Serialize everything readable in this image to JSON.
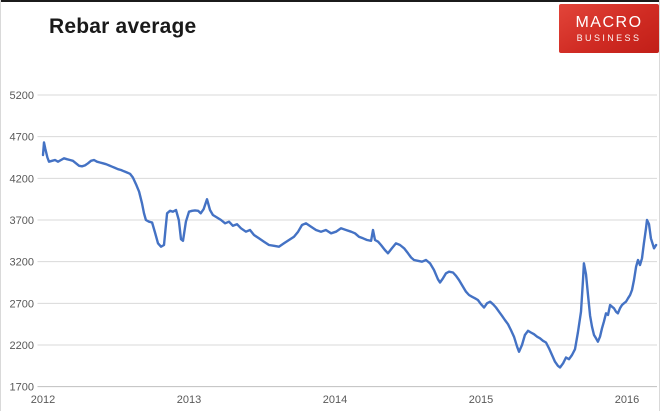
{
  "page": {
    "logo": {
      "line1": "MACRO",
      "line2": "BUSINESS",
      "bg_color": "#d02b23",
      "text_color": "#ffffff"
    }
  },
  "chart_data": {
    "type": "line",
    "title": "Rebar average",
    "xlabel": "",
    "ylabel": "",
    "x_ticks": [
      2012,
      2013,
      2014,
      2015,
      2016
    ],
    "y_ticks": [
      1700,
      2200,
      2700,
      3200,
      3700,
      4200,
      4700,
      5200
    ],
    "xlim": [
      2012,
      2016.25
    ],
    "ylim": [
      1700,
      5350
    ],
    "grid": "horizontal",
    "legend_position": "none",
    "line_color": "#4472C4",
    "gridline_color": "#D9D9D9",
    "axis_line_color": "#BFBFBF",
    "tick_label_color": "#595959",
    "series": [
      {
        "name": "Rebar average",
        "color": "#4472C4",
        "points": [
          [
            2012.0,
            4480
          ],
          [
            2012.007,
            4630
          ],
          [
            2012.015,
            4560
          ],
          [
            2012.03,
            4450
          ],
          [
            2012.041,
            4400
          ],
          [
            2012.062,
            4410
          ],
          [
            2012.082,
            4420
          ],
          [
            2012.103,
            4400
          ],
          [
            2012.123,
            4420
          ],
          [
            2012.144,
            4440
          ],
          [
            2012.164,
            4430
          ],
          [
            2012.185,
            4420
          ],
          [
            2012.205,
            4410
          ],
          [
            2012.226,
            4380
          ],
          [
            2012.247,
            4350
          ],
          [
            2012.267,
            4345
          ],
          [
            2012.288,
            4355
          ],
          [
            2012.308,
            4380
          ],
          [
            2012.329,
            4410
          ],
          [
            2012.349,
            4420
          ],
          [
            2012.37,
            4400
          ],
          [
            2012.39,
            4390
          ],
          [
            2012.411,
            4380
          ],
          [
            2012.432,
            4370
          ],
          [
            2012.452,
            4355
          ],
          [
            2012.473,
            4340
          ],
          [
            2012.493,
            4325
          ],
          [
            2012.514,
            4310
          ],
          [
            2012.534,
            4300
          ],
          [
            2012.555,
            4285
          ],
          [
            2012.575,
            4270
          ],
          [
            2012.596,
            4255
          ],
          [
            2012.616,
            4210
          ],
          [
            2012.637,
            4130
          ],
          [
            2012.658,
            4040
          ],
          [
            2012.678,
            3900
          ],
          [
            2012.692,
            3780
          ],
          [
            2012.705,
            3700
          ],
          [
            2012.726,
            3680
          ],
          [
            2012.747,
            3670
          ],
          [
            2012.767,
            3550
          ],
          [
            2012.788,
            3420
          ],
          [
            2012.808,
            3380
          ],
          [
            2012.829,
            3400
          ],
          [
            2012.84,
            3600
          ],
          [
            2012.85,
            3780
          ],
          [
            2012.87,
            3810
          ],
          [
            2012.89,
            3800
          ],
          [
            2012.911,
            3820
          ],
          [
            2012.93,
            3700
          ],
          [
            2012.945,
            3470
          ],
          [
            2012.959,
            3450
          ],
          [
            2012.979,
            3680
          ],
          [
            2013.0,
            3800
          ],
          [
            2013.021,
            3810
          ],
          [
            2013.041,
            3815
          ],
          [
            2013.062,
            3810
          ],
          [
            2013.08,
            3780
          ],
          [
            2013.1,
            3830
          ],
          [
            2013.123,
            3950
          ],
          [
            2013.144,
            3820
          ],
          [
            2013.164,
            3760
          ],
          [
            2013.192,
            3730
          ],
          [
            2013.219,
            3700
          ],
          [
            2013.247,
            3660
          ],
          [
            2013.274,
            3680
          ],
          [
            2013.301,
            3630
          ],
          [
            2013.329,
            3650
          ],
          [
            2013.356,
            3600
          ],
          [
            2013.39,
            3560
          ],
          [
            2013.418,
            3580
          ],
          [
            2013.445,
            3520
          ],
          [
            2013.479,
            3480
          ],
          [
            2013.514,
            3440
          ],
          [
            2013.548,
            3400
          ],
          [
            2013.582,
            3390
          ],
          [
            2013.616,
            3380
          ],
          [
            2013.651,
            3420
          ],
          [
            2013.685,
            3460
          ],
          [
            2013.719,
            3500
          ],
          [
            2013.747,
            3560
          ],
          [
            2013.774,
            3640
          ],
          [
            2013.801,
            3660
          ],
          [
            2013.836,
            3620
          ],
          [
            2013.87,
            3580
          ],
          [
            2013.904,
            3560
          ],
          [
            2013.938,
            3580
          ],
          [
            2013.973,
            3540
          ],
          [
            2014.007,
            3560
          ],
          [
            2014.041,
            3600
          ],
          [
            2014.075,
            3580
          ],
          [
            2014.11,
            3560
          ],
          [
            2014.137,
            3540
          ],
          [
            2014.164,
            3500
          ],
          [
            2014.192,
            3480
          ],
          [
            2014.219,
            3460
          ],
          [
            2014.247,
            3450
          ],
          [
            2014.26,
            3580
          ],
          [
            2014.274,
            3460
          ],
          [
            2014.295,
            3440
          ],
          [
            2014.315,
            3400
          ],
          [
            2014.342,
            3340
          ],
          [
            2014.363,
            3300
          ],
          [
            2014.39,
            3360
          ],
          [
            2014.418,
            3420
          ],
          [
            2014.445,
            3400
          ],
          [
            2014.473,
            3360
          ],
          [
            2014.5,
            3300
          ],
          [
            2014.521,
            3250
          ],
          [
            2014.541,
            3220
          ],
          [
            2014.568,
            3210
          ],
          [
            2014.596,
            3200
          ],
          [
            2014.623,
            3220
          ],
          [
            2014.651,
            3180
          ],
          [
            2014.678,
            3100
          ],
          [
            2014.705,
            2990
          ],
          [
            2014.719,
            2950
          ],
          [
            2014.74,
            3000
          ],
          [
            2014.76,
            3060
          ],
          [
            2014.781,
            3080
          ],
          [
            2014.808,
            3070
          ],
          [
            2014.829,
            3030
          ],
          [
            2014.849,
            2980
          ],
          [
            2014.877,
            2900
          ],
          [
            2014.897,
            2840
          ],
          [
            2014.918,
            2800
          ],
          [
            2014.938,
            2780
          ],
          [
            2014.959,
            2760
          ],
          [
            2014.979,
            2740
          ],
          [
            2015.0,
            2690
          ],
          [
            2015.021,
            2650
          ],
          [
            2015.041,
            2700
          ],
          [
            2015.062,
            2720
          ],
          [
            2015.082,
            2690
          ],
          [
            2015.103,
            2650
          ],
          [
            2015.123,
            2600
          ],
          [
            2015.144,
            2550
          ],
          [
            2015.164,
            2500
          ],
          [
            2015.185,
            2450
          ],
          [
            2015.205,
            2380
          ],
          [
            2015.226,
            2300
          ],
          [
            2015.247,
            2180
          ],
          [
            2015.26,
            2120
          ],
          [
            2015.281,
            2200
          ],
          [
            2015.301,
            2320
          ],
          [
            2015.322,
            2370
          ],
          [
            2015.342,
            2350
          ],
          [
            2015.363,
            2330
          ],
          [
            2015.384,
            2300
          ],
          [
            2015.404,
            2280
          ],
          [
            2015.425,
            2250
          ],
          [
            2015.445,
            2230
          ],
          [
            2015.466,
            2160
          ],
          [
            2015.486,
            2080
          ],
          [
            2015.507,
            2000
          ],
          [
            2015.527,
            1950
          ],
          [
            2015.541,
            1930
          ],
          [
            2015.562,
            1980
          ],
          [
            2015.582,
            2050
          ],
          [
            2015.603,
            2030
          ],
          [
            2015.623,
            2080
          ],
          [
            2015.644,
            2150
          ],
          [
            2015.664,
            2350
          ],
          [
            2015.685,
            2600
          ],
          [
            2015.699,
            3000
          ],
          [
            2015.705,
            3180
          ],
          [
            2015.719,
            3050
          ],
          [
            2015.733,
            2800
          ],
          [
            2015.747,
            2550
          ],
          [
            2015.76,
            2420
          ],
          [
            2015.774,
            2320
          ],
          [
            2015.788,
            2280
          ],
          [
            2015.801,
            2240
          ],
          [
            2015.815,
            2300
          ],
          [
            2015.829,
            2400
          ],
          [
            2015.842,
            2480
          ],
          [
            2015.856,
            2580
          ],
          [
            2015.87,
            2560
          ],
          [
            2015.884,
            2680
          ],
          [
            2015.897,
            2660
          ],
          [
            2015.911,
            2640
          ],
          [
            2015.925,
            2600
          ],
          [
            2015.938,
            2580
          ],
          [
            2015.952,
            2640
          ],
          [
            2015.966,
            2680
          ],
          [
            2015.979,
            2700
          ],
          [
            2015.993,
            2720
          ],
          [
            2016.007,
            2760
          ],
          [
            2016.021,
            2800
          ],
          [
            2016.034,
            2860
          ],
          [
            2016.048,
            2980
          ],
          [
            2016.062,
            3140
          ],
          [
            2016.075,
            3220
          ],
          [
            2016.089,
            3160
          ],
          [
            2016.103,
            3240
          ],
          [
            2016.116,
            3420
          ],
          [
            2016.13,
            3600
          ],
          [
            2016.137,
            3700
          ],
          [
            2016.151,
            3650
          ],
          [
            2016.164,
            3480
          ],
          [
            2016.178,
            3400
          ],
          [
            2016.185,
            3360
          ],
          [
            2016.199,
            3400
          ]
        ]
      }
    ]
  }
}
